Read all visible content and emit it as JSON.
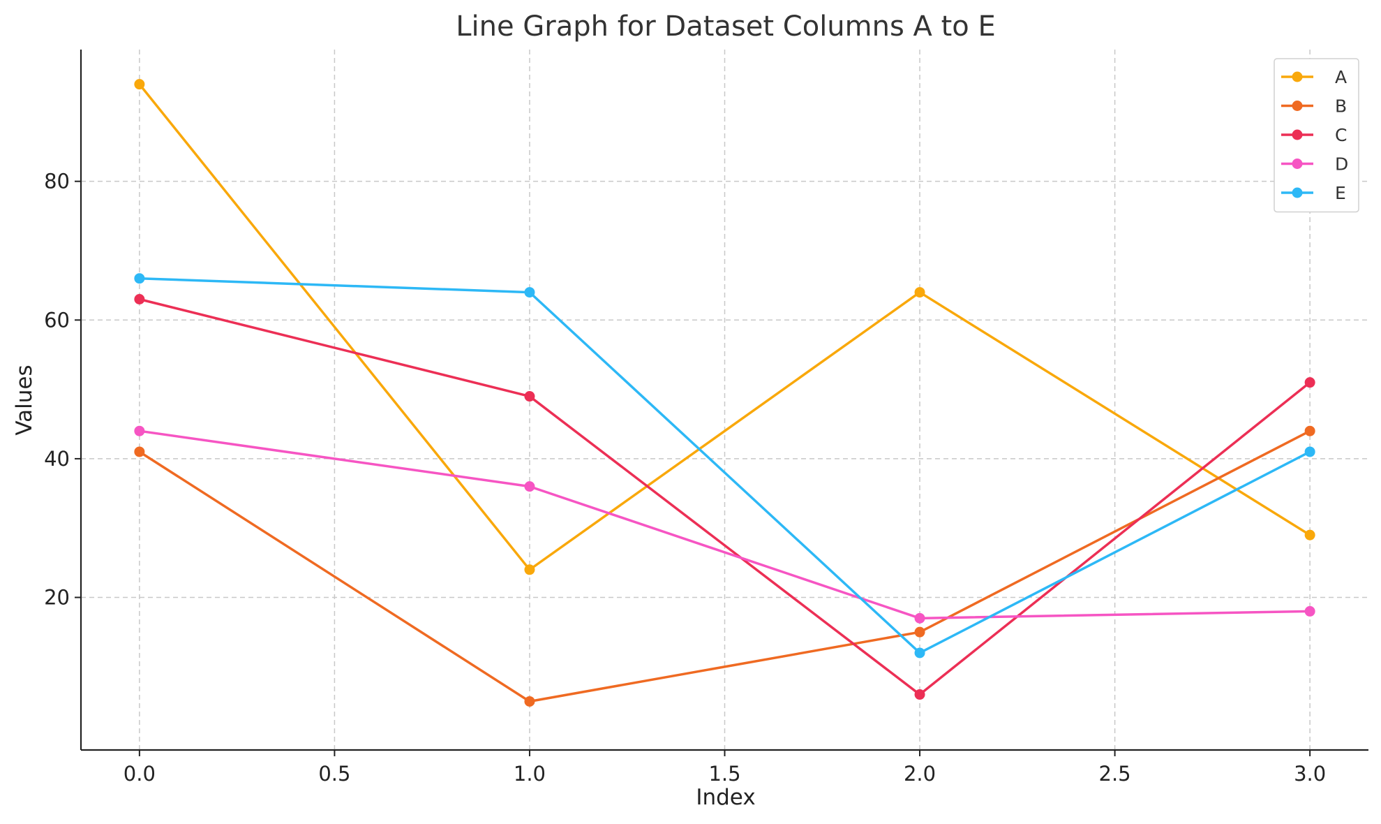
{
  "chart_data": {
    "type": "line",
    "title": "Line Graph for Dataset Columns A to E",
    "xlabel": "Index",
    "ylabel": "Values",
    "x": [
      0,
      1,
      2,
      3
    ],
    "xlim": [
      -0.15,
      3.15
    ],
    "ylim": [
      -2,
      99
    ],
    "xticks": [
      0.0,
      0.5,
      1.0,
      1.5,
      2.0,
      2.5,
      3.0
    ],
    "xtick_labels": [
      "0.0",
      "0.5",
      "1.0",
      "1.5",
      "2.0",
      "2.5",
      "3.0"
    ],
    "yticks": [
      20,
      40,
      60,
      80
    ],
    "ytick_labels": [
      "20",
      "40",
      "60",
      "80"
    ],
    "grid": true,
    "legend_position": "top-right",
    "series": [
      {
        "name": "A",
        "color": "#f9a80b",
        "values": [
          94,
          24,
          64,
          29
        ]
      },
      {
        "name": "B",
        "color": "#ef6a22",
        "values": [
          41,
          5,
          15,
          44
        ]
      },
      {
        "name": "C",
        "color": "#ec2f55",
        "values": [
          63,
          49,
          6,
          51
        ]
      },
      {
        "name": "D",
        "color": "#f655c3",
        "values": [
          44,
          36,
          17,
          18
        ]
      },
      {
        "name": "E",
        "color": "#2db8f6",
        "values": [
          66,
          64,
          12,
          41
        ]
      }
    ]
  }
}
